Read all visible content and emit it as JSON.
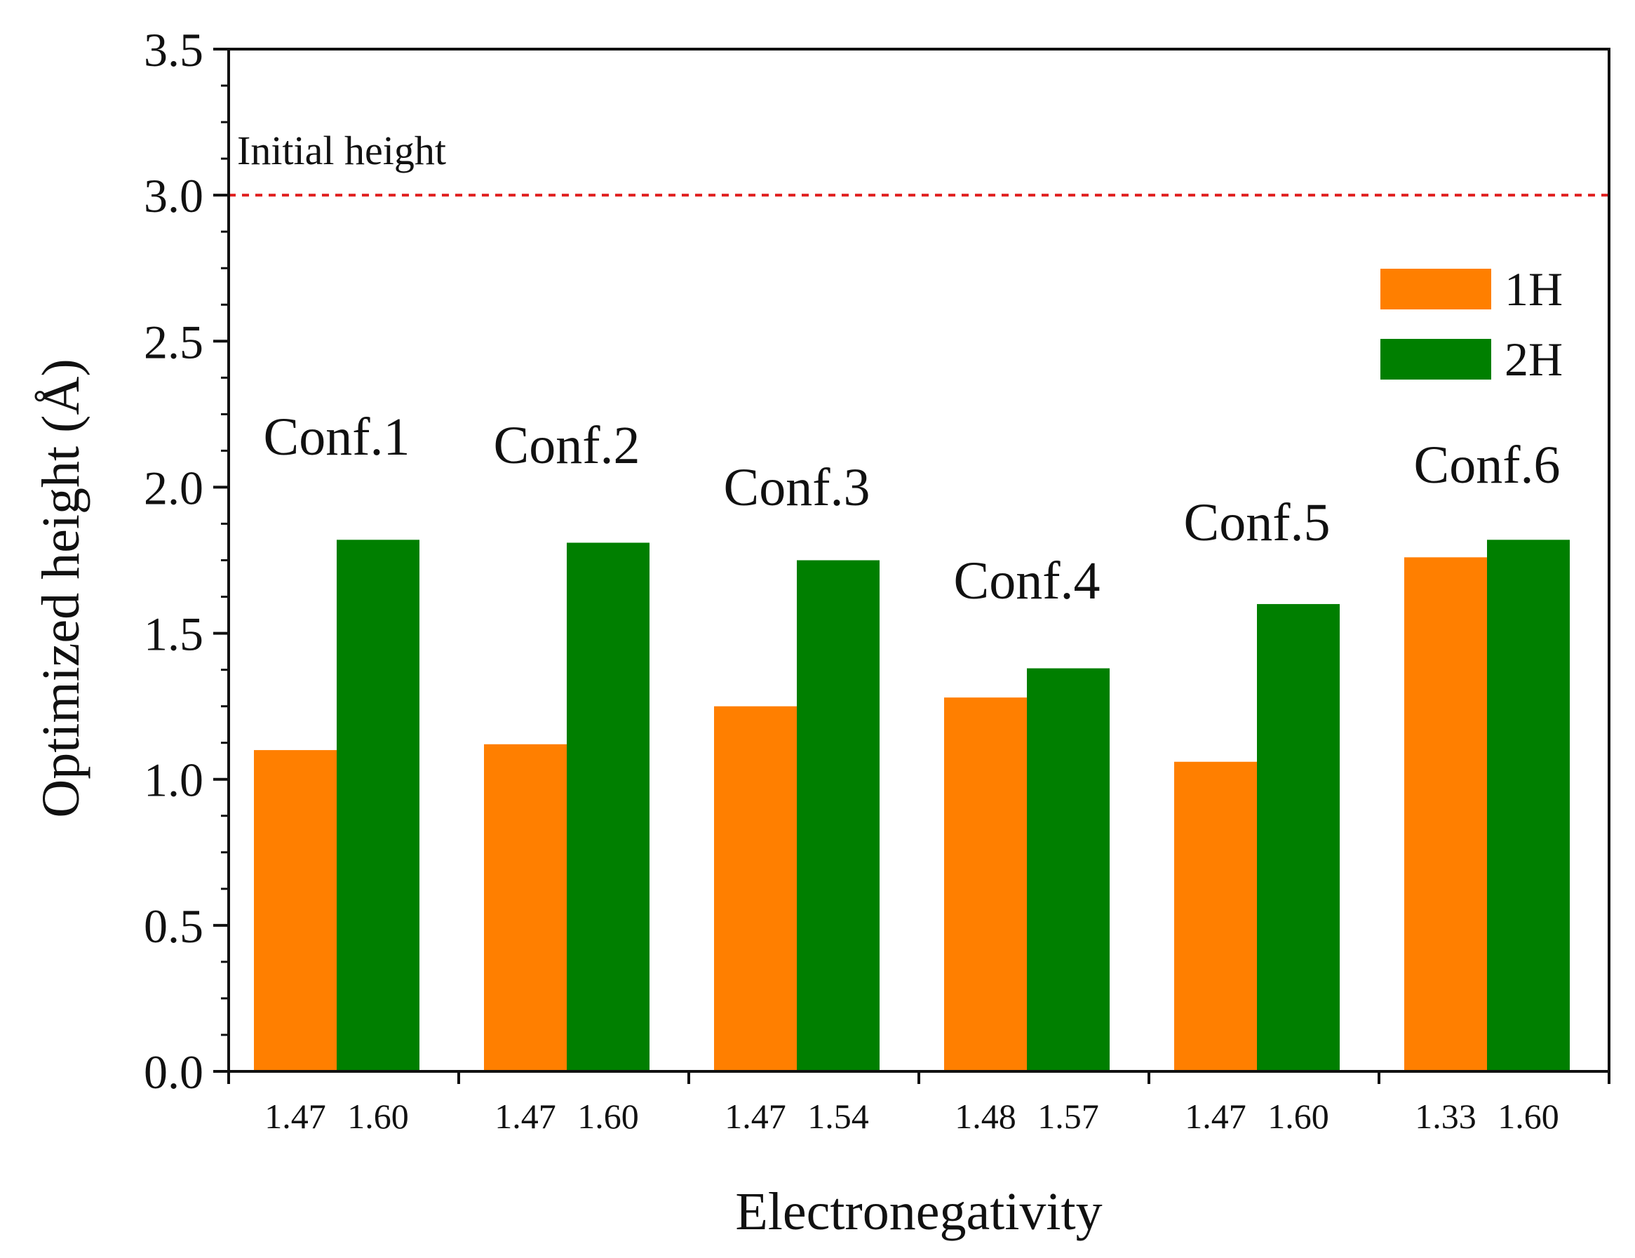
{
  "chart_data": {
    "type": "bar",
    "xlabel": "Electronegativity",
    "ylabel": "Optimized height (Å)",
    "ylim": [
      0,
      3.5
    ],
    "yticks": [
      "0.0",
      "0.5",
      "1.0",
      "1.5",
      "2.0",
      "2.5",
      "3.0",
      "3.5"
    ],
    "grid": false,
    "legend_position": "top-right",
    "groups": [
      {
        "label": "Conf.1",
        "electronegativity": [
          "1.47",
          "1.60"
        ]
      },
      {
        "label": "Conf.2",
        "electronegativity": [
          "1.47",
          "1.60"
        ]
      },
      {
        "label": "Conf.3",
        "electronegativity": [
          "1.47",
          "1.54"
        ]
      },
      {
        "label": "Conf.4",
        "electronegativity": [
          "1.48",
          "1.57"
        ]
      },
      {
        "label": "Conf.5",
        "electronegativity": [
          "1.47",
          "1.60"
        ]
      },
      {
        "label": "Conf.6",
        "electronegativity": [
          "1.33",
          "1.60"
        ]
      }
    ],
    "series": [
      {
        "name": "1H",
        "color": "#ff7f00",
        "values": [
          1.1,
          1.12,
          1.25,
          1.28,
          1.06,
          1.76
        ]
      },
      {
        "name": "2H",
        "color": "#007f00",
        "values": [
          1.82,
          1.81,
          1.75,
          1.38,
          1.6,
          1.82
        ]
      }
    ],
    "reference_line": {
      "label": "Initial height",
      "value": 3.0,
      "color": "#e02020",
      "style": "dashed"
    }
  }
}
